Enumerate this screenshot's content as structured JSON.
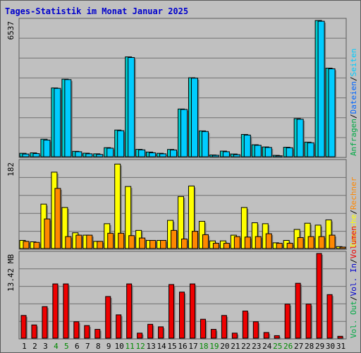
{
  "title": "Tages-Statistik im Monat Januar 2025",
  "colors": {
    "anfragen": "#00cccc",
    "dateien": "#0066ff",
    "seiten": "#00ccff",
    "besuche": "#ffff00",
    "rechner": "#ff8800",
    "vol_out": "#00aa44",
    "vol_in": "#0000cc",
    "volumen": "#ee0000",
    "weekend_label": "#008800",
    "weekday_label": "#000000"
  },
  "legend": {
    "separator": "/",
    "top": [
      "Anfragen",
      "Dateien",
      "Seiten"
    ],
    "middle": [
      "Besuche",
      "Rechner"
    ],
    "bottom": [
      "Vol. Out",
      "Vol. In",
      "Volumen"
    ]
  },
  "chart_data": [
    {
      "type": "bar",
      "panel": "top",
      "max_label": "6537",
      "ylim": [
        0,
        6537
      ],
      "grid": true,
      "categories": [
        "1",
        "2",
        "3",
        "4",
        "5",
        "6",
        "7",
        "8",
        "9",
        "10",
        "11",
        "12",
        "13",
        "14",
        "15",
        "16",
        "17",
        "18",
        "19",
        "20",
        "21",
        "22",
        "23",
        "24",
        "25",
        "26",
        "27",
        "28",
        "29",
        "30",
        "31"
      ],
      "weekend": [
        4,
        5,
        11,
        12,
        18,
        19,
        25,
        26
      ],
      "series": [
        {
          "name": "Anfragen",
          "values": [
            165,
            185,
            840,
            3300,
            3720,
            260,
            170,
            140,
            435,
            1280,
            4790,
            355,
            225,
            165,
            350,
            2290,
            3790,
            1240,
            85,
            270,
            130,
            1070,
            575,
            470,
            65,
            455,
            1830,
            700,
            6537,
            4250,
            0
          ]
        },
        {
          "name": "Dateien",
          "values": [
            165,
            185,
            840,
            3300,
            3720,
            260,
            170,
            140,
            435,
            1280,
            4790,
            355,
            225,
            165,
            350,
            2290,
            3790,
            1240,
            85,
            270,
            130,
            1070,
            575,
            470,
            65,
            455,
            1830,
            700,
            6537,
            4250,
            0
          ]
        },
        {
          "name": "Seiten",
          "values": [
            130,
            150,
            800,
            3280,
            3700,
            240,
            140,
            110,
            410,
            1250,
            4760,
            330,
            190,
            140,
            325,
            2270,
            3770,
            1210,
            70,
            240,
            100,
            1040,
            550,
            445,
            45,
            430,
            1800,
            670,
            6500,
            4220,
            0
          ]
        }
      ]
    },
    {
      "type": "bar",
      "panel": "middle",
      "max_label": "182",
      "ylim": [
        0,
        182
      ],
      "grid": true,
      "categories": [
        "1",
        "2",
        "3",
        "4",
        "5",
        "6",
        "7",
        "8",
        "9",
        "10",
        "11",
        "12",
        "13",
        "14",
        "15",
        "16",
        "17",
        "18",
        "19",
        "20",
        "21",
        "22",
        "23",
        "24",
        "25",
        "26",
        "27",
        "28",
        "29",
        "30",
        "31"
      ],
      "series": [
        {
          "name": "Besuche",
          "values": [
            17,
            14,
            93,
            160,
            86,
            33,
            28,
            15,
            52,
            177,
            130,
            38,
            17,
            17,
            59,
            109,
            131,
            57,
            16,
            16,
            28,
            86,
            54,
            52,
            12,
            17,
            40,
            53,
            49,
            60,
            4
          ]
        },
        {
          "name": "Rechner",
          "values": [
            15,
            13,
            62,
            126,
            25,
            28,
            28,
            15,
            32,
            32,
            27,
            22,
            17,
            17,
            38,
            20,
            36,
            29,
            11,
            11,
            25,
            24,
            25,
            31,
            11,
            11,
            23,
            25,
            25,
            28,
            3
          ]
        }
      ]
    },
    {
      "type": "bar",
      "panel": "bottom",
      "max_label": "13.42 MB",
      "ylim": [
        0,
        13.42
      ],
      "grid": true,
      "categories": [
        "1",
        "2",
        "3",
        "4",
        "5",
        "6",
        "7",
        "8",
        "9",
        "10",
        "11",
        "12",
        "13",
        "14",
        "15",
        "16",
        "17",
        "18",
        "19",
        "20",
        "21",
        "22",
        "23",
        "24",
        "25",
        "26",
        "27",
        "28",
        "29",
        "30",
        "31"
      ],
      "series": [
        {
          "name": "Volumen",
          "values": [
            3.6,
            2.1,
            5.0,
            8.6,
            8.6,
            2.6,
            2.0,
            1.4,
            6.6,
            3.7,
            8.6,
            0.8,
            2.2,
            1.8,
            8.5,
            7.3,
            8.6,
            3.0,
            1.4,
            3.6,
            0.8,
            4.3,
            2.6,
            0.9,
            0.4,
            5.4,
            8.7,
            5.4,
            13.42,
            6.9,
            0.3
          ]
        }
      ]
    }
  ]
}
